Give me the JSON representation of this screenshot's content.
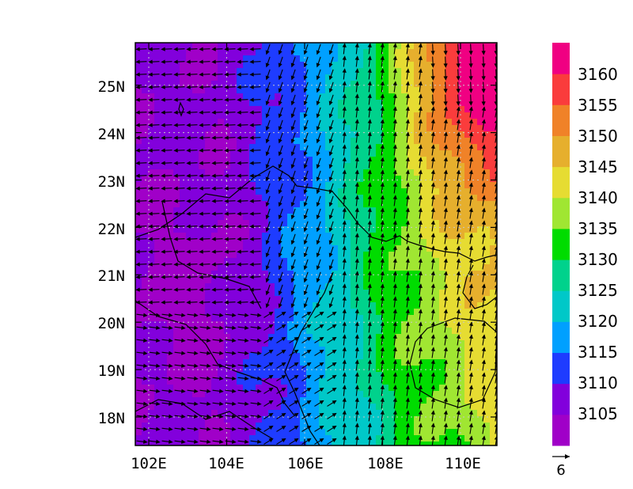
{
  "map": {
    "longitude_ticks": [
      "102E",
      "104E",
      "106E",
      "108E",
      "110E"
    ],
    "latitude_ticks": [
      "18N",
      "19N",
      "20N",
      "21N",
      "22N",
      "23N",
      "24N",
      "25N"
    ],
    "lon_range": [
      101.6,
      110.8
    ],
    "lat_range": [
      17.4,
      25.9
    ],
    "grid_lines": "dotted",
    "field_type": "filled contour with wind vectors"
  },
  "colorbar": {
    "labels": [
      "3105",
      "3110",
      "3115",
      "3120",
      "3125",
      "3130",
      "3135",
      "3140",
      "3145",
      "3150",
      "3155",
      "3160"
    ],
    "colors": [
      "#a000c8",
      "#8200dc",
      "#1e3cff",
      "#00a0ff",
      "#00c8c8",
      "#00d28c",
      "#00dc00",
      "#a0e632",
      "#e6dc32",
      "#e6af2d",
      "#f08228",
      "#fa3c3c",
      "#f00082"
    ]
  },
  "reference_vector": {
    "label": "6"
  },
  "chart_data": {
    "type": "heatmap",
    "xlabel": "",
    "ylabel": "",
    "x_ticks": [
      "102E",
      "104E",
      "106E",
      "108E",
      "110E"
    ],
    "y_ticks": [
      "18N",
      "19N",
      "20N",
      "21N",
      "22N",
      "23N",
      "24N",
      "25N"
    ],
    "levels": [
      3105,
      3110,
      3115,
      3120,
      3125,
      3130,
      3135,
      3140,
      3145,
      3150,
      3155,
      3160
    ],
    "value_range": [
      3100,
      3165
    ],
    "overlay": "wind vectors, reference length 6"
  }
}
